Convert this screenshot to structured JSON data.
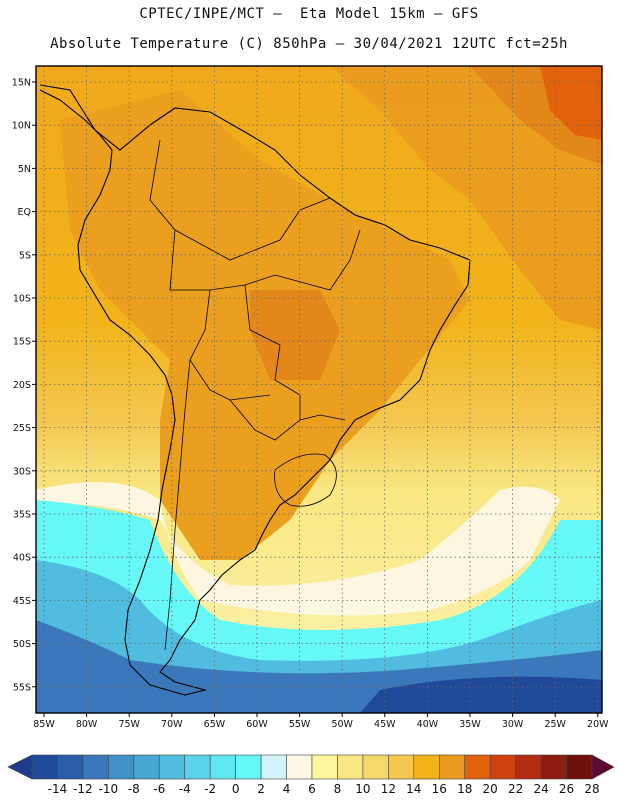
{
  "header": {
    "line1": "CPTEC/INPE/MCT –  Eta Model 15km – GFS",
    "line2": "Absolute Temperature (C) 850hPa – 30/04/2021 12UTC fct=25h"
  },
  "map": {
    "region": "South America",
    "lat_labels": [
      "15N",
      "10N",
      "5N",
      "EQ",
      "5S",
      "10S",
      "15S",
      "20S",
      "25S",
      "30S",
      "35S",
      "40S",
      "45S",
      "50S",
      "55S"
    ],
    "lon_labels": [
      "85W",
      "80W",
      "75W",
      "70W",
      "65W",
      "60W",
      "55W",
      "50W",
      "45W",
      "40W",
      "35W",
      "30W",
      "25W",
      "20W"
    ],
    "gridlines": "dotted"
  },
  "colorbar": {
    "labels": [
      "-14",
      "-12",
      "-10",
      "-8",
      "-6",
      "-4",
      "-2",
      "0",
      "2",
      "4",
      "6",
      "8",
      "10",
      "12",
      "14",
      "16",
      "18",
      "20",
      "22",
      "24",
      "26",
      "28"
    ],
    "colors": [
      "#1e3c8c",
      "#21499a",
      "#2a5ea8",
      "#3b78bb",
      "#4290c8",
      "#47a6d2",
      "#50bde0",
      "#5ad3ea",
      "#60e6ef",
      "#66f7f7",
      "#d2f4fa",
      "#fdf8e6",
      "#fff59c",
      "#f9e883",
      "#f6d76a",
      "#f3c750",
      "#f2b41a",
      "#eb9b1f",
      "#e2620b",
      "#cf4210",
      "#b22c12",
      "#8e1c10",
      "#6e1009",
      "#5b0b33"
    ]
  }
}
